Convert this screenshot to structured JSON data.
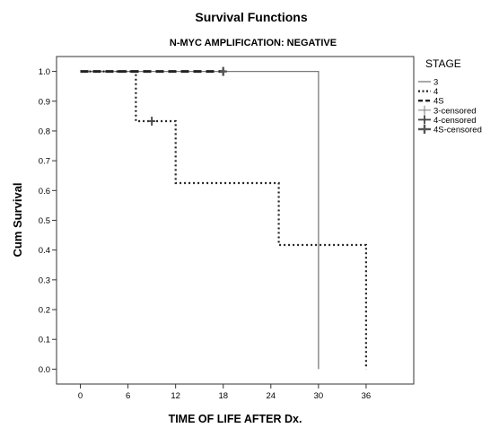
{
  "chart_data": {
    "type": "line",
    "title": "Survival Functions",
    "subtitle": "N-MYC AMPLIFICATION: NEGATIVE",
    "xlabel": "TIME OF LIFE AFTER Dx.",
    "ylabel": "Cum Survival",
    "xlim": [
      -3,
      42
    ],
    "ylim": [
      -0.05,
      1.05
    ],
    "x_ticks": [
      0,
      6,
      12,
      18,
      24,
      30,
      36
    ],
    "y_ticks": [
      0.0,
      0.1,
      0.2,
      0.3,
      0.4,
      0.5,
      0.6,
      0.7,
      0.8,
      0.9,
      1.0
    ],
    "y_tick_labels": [
      "0.0",
      "0.1",
      "0.2",
      "0.3",
      "0.4",
      "0.5",
      "0.6",
      "0.7",
      "0.8",
      "0.9",
      "1.0"
    ],
    "grid": false,
    "legend_title": "STAGE",
    "legend_position": "right",
    "series": [
      {
        "name": "3",
        "style": "solid-thin",
        "color": "#7a7a7a",
        "steps": [
          [
            0,
            1.0
          ],
          [
            30,
            1.0
          ],
          [
            30,
            0.0
          ]
        ]
      },
      {
        "name": "4",
        "style": "dotted",
        "color": "#222222",
        "steps": [
          [
            0,
            1.0
          ],
          [
            7,
            1.0
          ],
          [
            7,
            0.833
          ],
          [
            12,
            0.833
          ],
          [
            12,
            0.625
          ],
          [
            25,
            0.625
          ],
          [
            25,
            0.417
          ],
          [
            36,
            0.417
          ],
          [
            36,
            0.0
          ]
        ]
      },
      {
        "name": "4S",
        "style": "dashed-thick",
        "color": "#222222",
        "steps": [
          [
            0,
            1.0
          ],
          [
            18,
            1.0
          ]
        ]
      }
    ],
    "censored": [
      {
        "name": "3-censored",
        "style": "thin",
        "color": "#7a7a7a",
        "points": []
      },
      {
        "name": "4-censored",
        "style": "medium",
        "color": "#444444",
        "points": [
          [
            9,
            0.833
          ]
        ]
      },
      {
        "name": "4S-censored",
        "style": "thick",
        "color": "#555555",
        "points": [
          [
            18,
            1.0
          ]
        ]
      }
    ]
  }
}
